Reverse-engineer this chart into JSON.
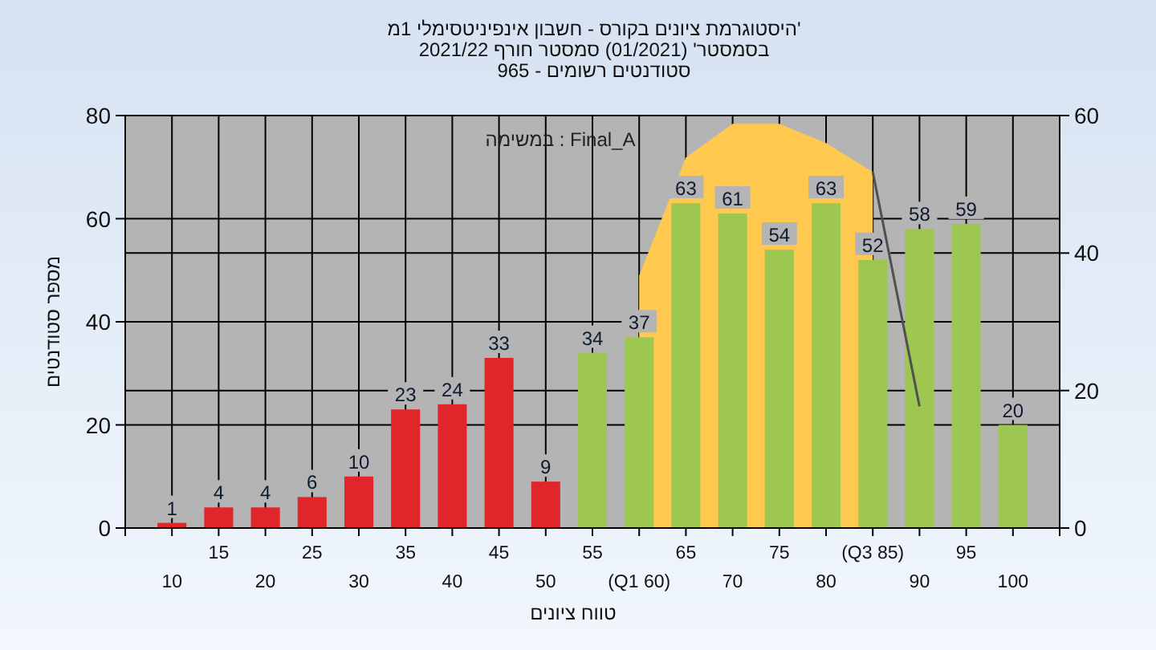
{
  "chart_data": {
    "type": "bar",
    "title": "היסטוגרמת ציונים בקורס - חשבון אינפיניטסימלי 1מ'",
    "subtitle": "בסמסטר' (01/2021)  סמסטר חורף 2021/22\nסטודנטים רשומים - 965",
    "xlabel": "טווח ציונים",
    "ylabel": "מספר סטודנטים",
    "annotations": [
      "במשימה : Final_A"
    ],
    "categories": [
      "10",
      "15",
      "20",
      "25",
      "30",
      "35",
      "40",
      "45",
      "50",
      "55",
      "(Q1 60)",
      "65",
      "70",
      "75",
      "80",
      "(Q3 85)",
      "90",
      "95",
      "100"
    ],
    "series": [
      {
        "type": "area",
        "axis": "y2",
        "color": "#ffc94f",
        "values": [
          null,
          null,
          null,
          null,
          null,
          null,
          null,
          null,
          null,
          null,
          36.7,
          53.9,
          58.8,
          58.8,
          56,
          51.8,
          null,
          null,
          null
        ]
      },
      {
        "colors": [
          "#e0262b",
          "#e0262b",
          "#e0262b",
          "#e0262b",
          "#e0262b",
          "#e0262b",
          "#e0262b",
          "#e0262b",
          "#e0262b",
          "#9ec752",
          "#9ec752",
          "#9ec752",
          "#9ec752",
          "#9ec752",
          "#9ec752",
          "#9ec752",
          "#9ec752",
          "#9ec752",
          "#9ec752"
        ],
        "values": [
          1,
          4,
          4,
          6,
          10,
          23,
          24,
          33,
          9,
          34,
          37,
          63,
          61,
          54,
          63,
          52,
          58,
          59,
          20
        ],
        "value_labels": [
          "1",
          "4",
          "4",
          "6",
          "10",
          "23",
          "24",
          "33",
          "9",
          "34",
          "37",
          "63",
          "61",
          "54",
          "63",
          "52",
          "58",
          "59",
          "20"
        ]
      },
      {
        "type": "line",
        "axis": "y2",
        "color": "#505050",
        "values": [
          null,
          null,
          null,
          null,
          null,
          null,
          null,
          null,
          null,
          null,
          null,
          null,
          null,
          null,
          null,
          51.8,
          17.7,
          null,
          null
        ]
      }
    ],
    "ylim": [
      0,
      80
    ],
    "yticks": [
      0,
      20,
      40,
      60,
      80
    ],
    "y2lim": [
      0,
      60
    ],
    "y2ticks": [
      0,
      20,
      40,
      60
    ],
    "grid": true
  }
}
